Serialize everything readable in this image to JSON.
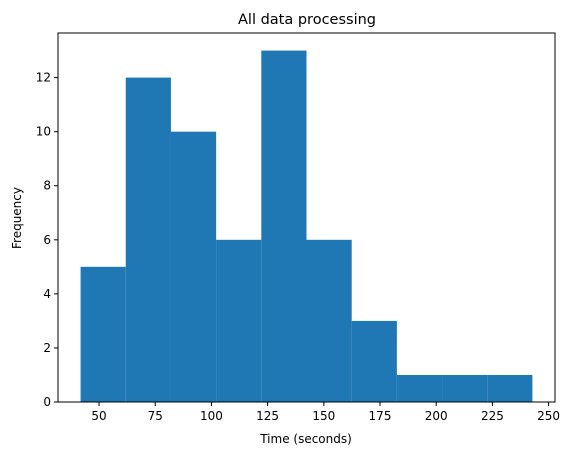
{
  "chart_data": {
    "type": "bar",
    "title": "All data processing",
    "xlabel": "Time (seconds)",
    "ylabel": "Frequency",
    "bar_color": "#1f77b4",
    "bins": [
      {
        "x0": 41.8,
        "x1": 61.9,
        "count": 5
      },
      {
        "x0": 61.9,
        "x1": 82.0,
        "count": 12
      },
      {
        "x0": 82.0,
        "x1": 102.1,
        "count": 10
      },
      {
        "x0": 102.1,
        "x1": 122.2,
        "count": 6
      },
      {
        "x0": 122.2,
        "x1": 142.3,
        "count": 13
      },
      {
        "x0": 142.3,
        "x1": 162.4,
        "count": 6
      },
      {
        "x0": 162.4,
        "x1": 182.5,
        "count": 3
      },
      {
        "x0": 182.5,
        "x1": 202.6,
        "count": 1
      },
      {
        "x0": 202.6,
        "x1": 222.7,
        "count": 1
      },
      {
        "x0": 222.7,
        "x1": 242.8,
        "count": 1
      }
    ],
    "xlim": [
      31.75,
      252.85
    ],
    "ylim": [
      0,
      13.65
    ],
    "xticks": [
      "50",
      "75",
      "100",
      "125",
      "150",
      "175",
      "200",
      "225",
      "250"
    ],
    "yticks": [
      "0",
      "2",
      "4",
      "6",
      "8",
      "10",
      "12"
    ],
    "grid": false,
    "legend": "none"
  }
}
